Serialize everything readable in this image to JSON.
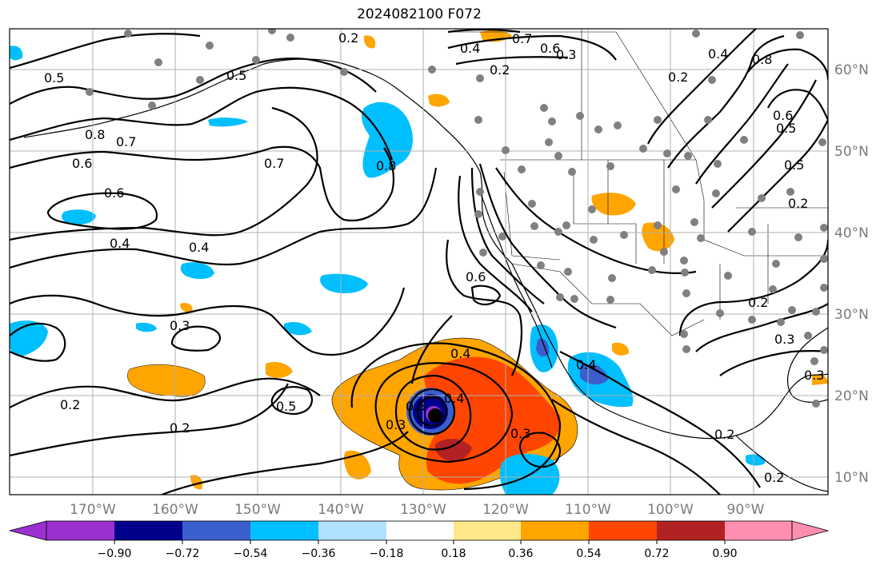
{
  "title": "2024082100 F072",
  "longitude_labels": [
    "170°W",
    "160°W",
    "150°W",
    "140°W",
    "130°W",
    "120°W",
    "110°W",
    "100°W",
    "90°W"
  ],
  "latitude_labels": [
    "60°N",
    "50°N",
    "40°N",
    "30°N",
    "20°N",
    "10°N"
  ],
  "colorbar": {
    "tick_labels": [
      "−0.90",
      "−0.72",
      "−0.54",
      "−0.36",
      "−0.18",
      "0.18",
      "0.36",
      "0.54",
      "0.72",
      "0.90"
    ],
    "colors": [
      "#9b30d0",
      "#00008b",
      "#3a5fcd",
      "#00bfff",
      "#b0e0ff",
      "#ffffff",
      "#ffe88a",
      "#ffa500",
      "#ff4500",
      "#b22222",
      "#ff8fb0"
    ]
  },
  "contour_labels": [
    "0.2",
    "0.7",
    "0.6",
    "0.4",
    "0.3",
    "0.5",
    "0.2",
    "0.5",
    "0.8",
    "0.7",
    "0.6",
    "0.6",
    "0.4",
    "0.4",
    "0.3",
    "0.2",
    "0.2",
    "0.7",
    "0.8",
    "0.5",
    "0.4",
    "0.4",
    "0.6",
    "0.3",
    "0.5",
    "0.3",
    "0.4",
    "0.2",
    "0.8",
    "0.6",
    "0.5",
    "0.5",
    "0.2",
    "0.4",
    "0.2",
    "0.3",
    "0.3",
    "0.2",
    "0.2"
  ],
  "station_marker_color": "#808080"
}
